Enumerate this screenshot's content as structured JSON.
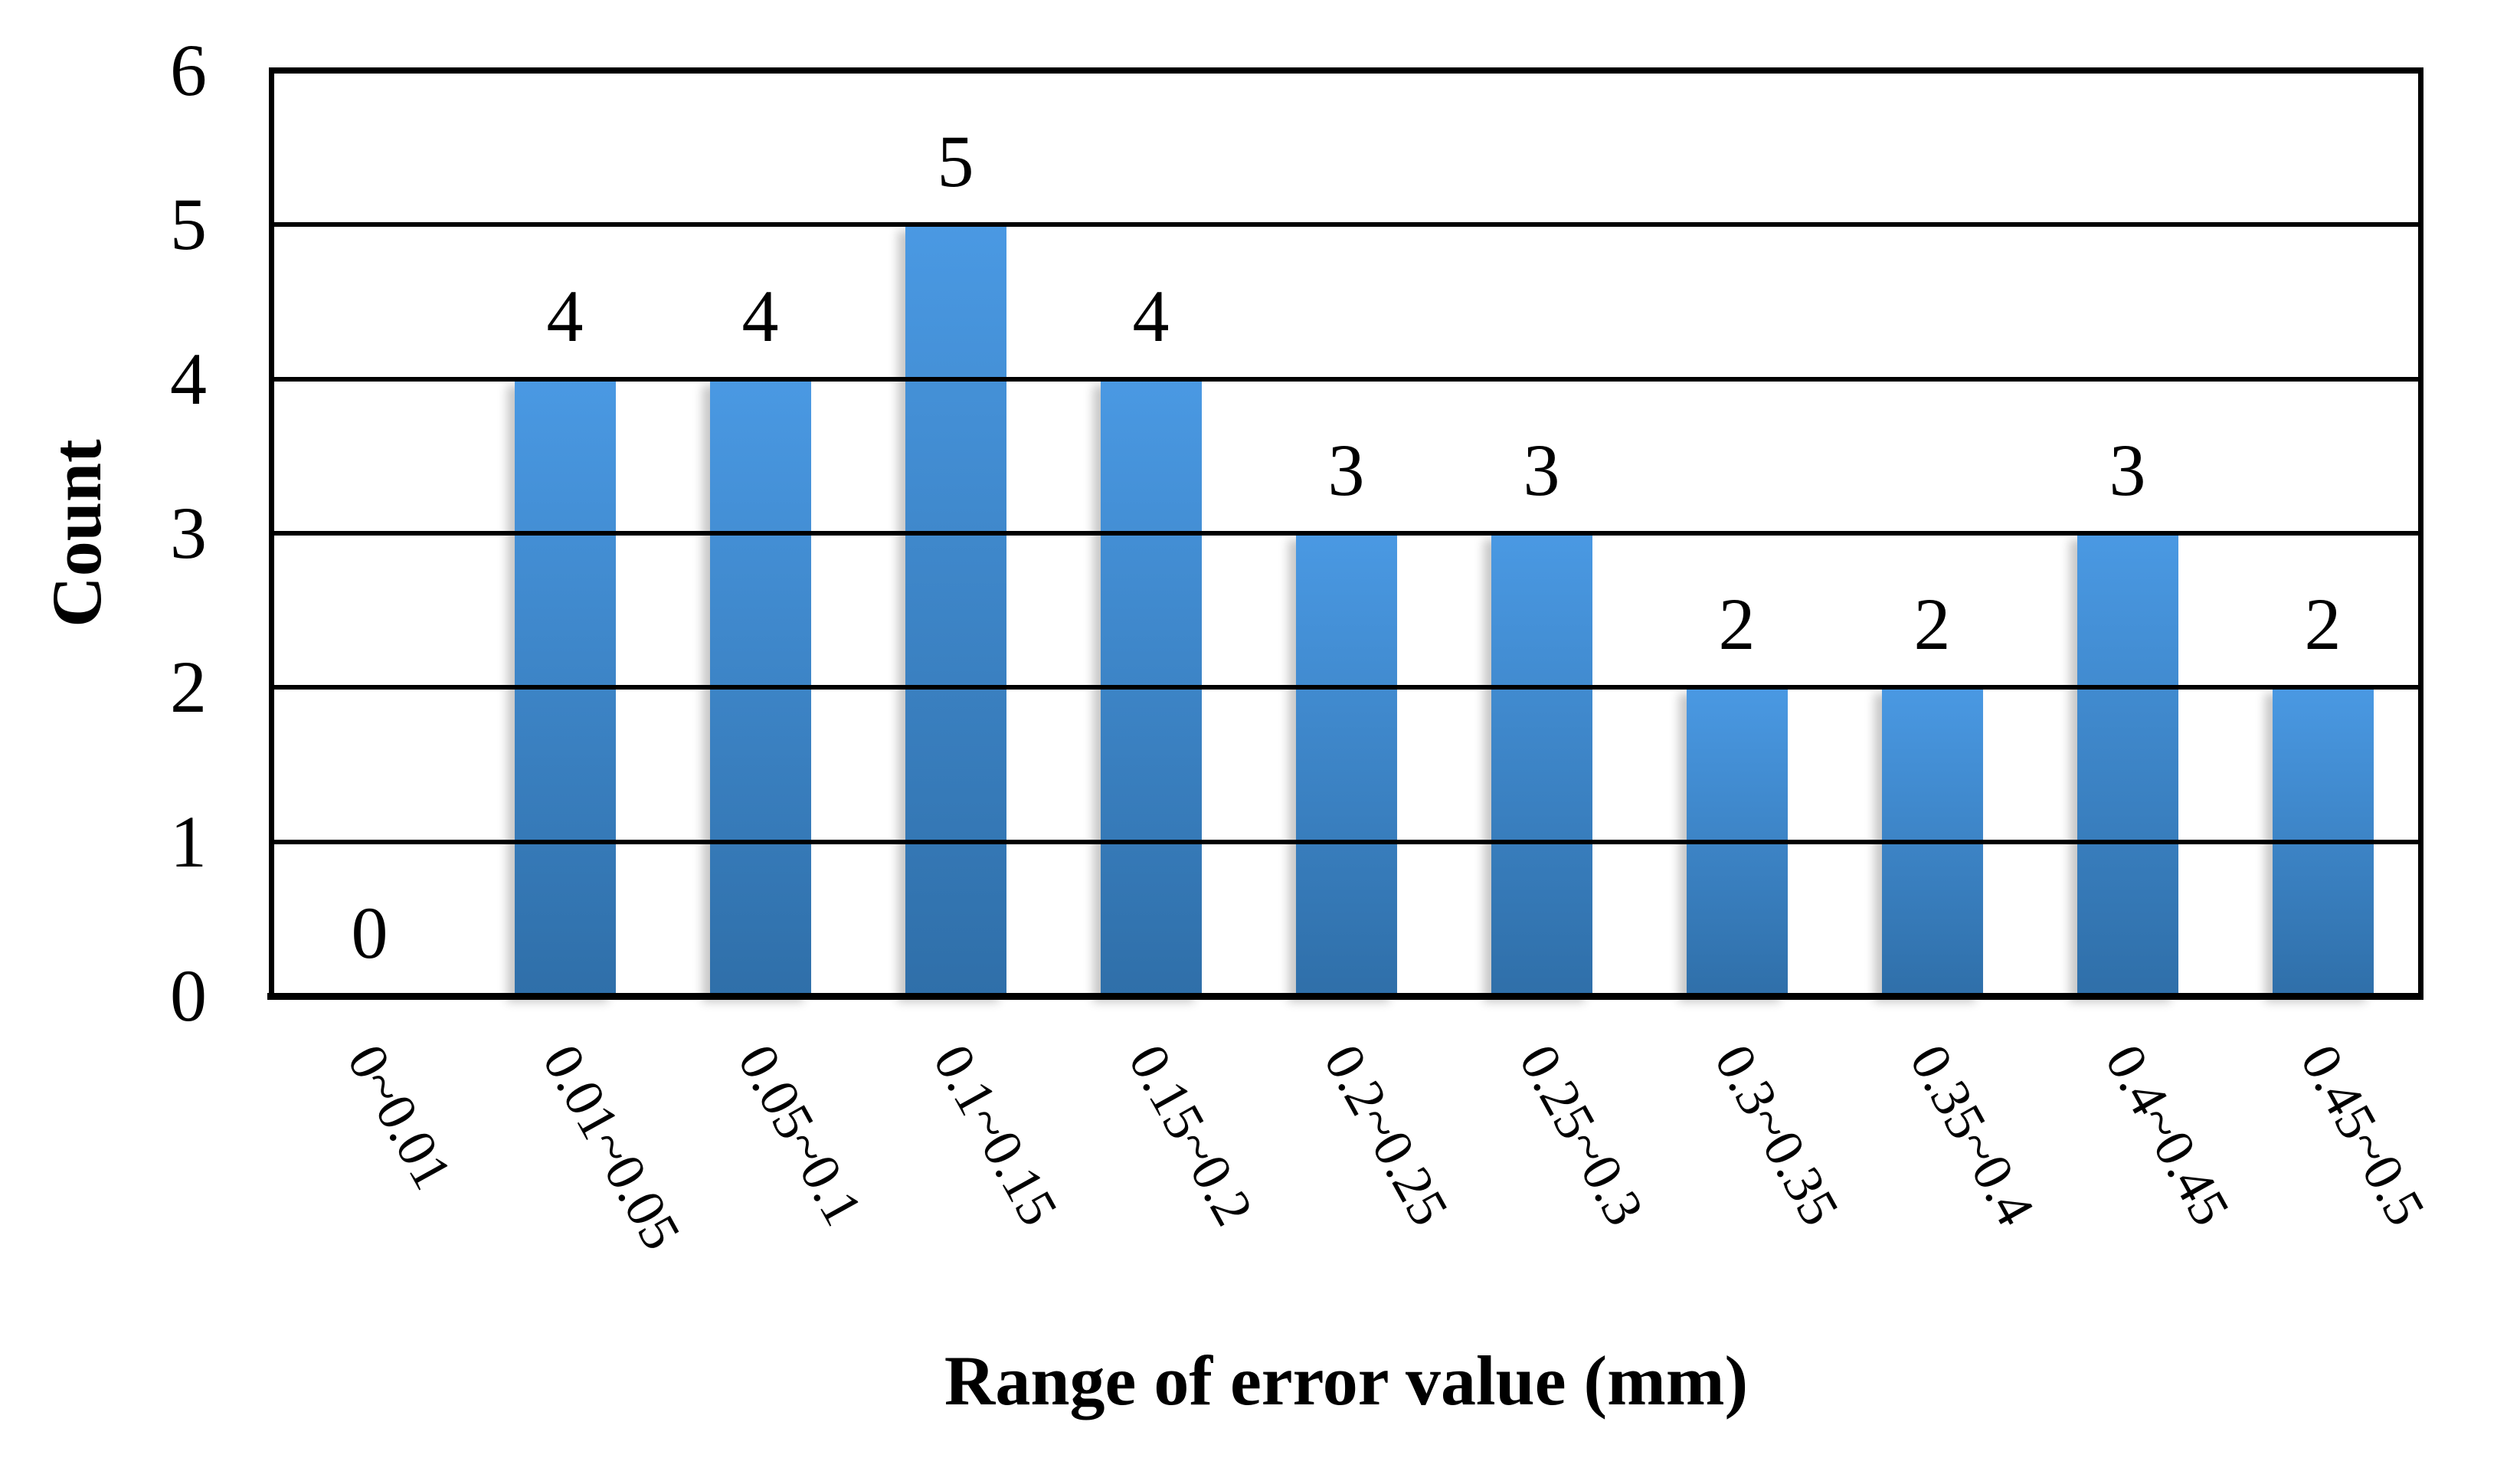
{
  "figure": {
    "background": "#ffffff",
    "text_color": "#000000"
  },
  "chart_data": {
    "type": "bar",
    "title": "",
    "xlabel": "Range of error value (mm)",
    "ylabel": "Count",
    "categories": [
      "0~0.01",
      "0.01~0.05",
      "0.05~0.1",
      "0.1~0.15",
      "0.15~0.2",
      "0.2~0.25",
      "0.25~0.3",
      "0.3~0.35",
      "0.35~0.4",
      "0.4~0.45",
      "0.45~0.5"
    ],
    "values": [
      0,
      4,
      4,
      5,
      4,
      3,
      3,
      2,
      2,
      3,
      2
    ],
    "show_data_labels": true,
    "ylim": [
      0,
      6
    ],
    "yticks": [
      0,
      1,
      2,
      3,
      4,
      5,
      6
    ],
    "grid": true,
    "legend": false,
    "x_tick_rotation_deg": 61,
    "bar_gradient_top": "#4a99e3",
    "bar_gradient_bottom": "#2f6fa9",
    "gridline_color": "#000000",
    "axis_color": "#000000"
  }
}
